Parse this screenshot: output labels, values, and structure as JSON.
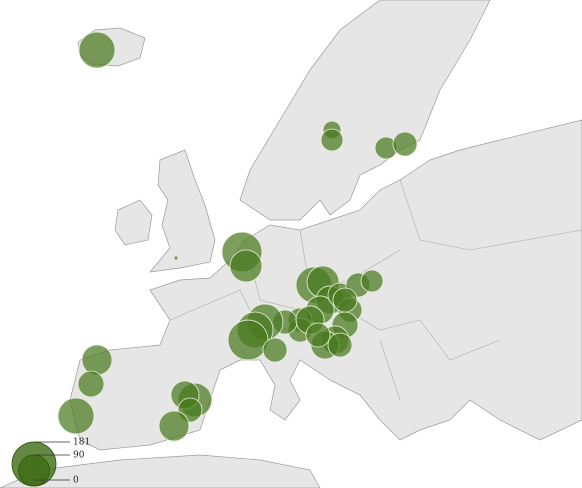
{
  "map_data": {
    "bubbles": [
      121,
      30,
      45,
      45,
      54,
      1,
      149,
      96,
      121,
      96,
      74,
      74,
      54,
      54,
      45,
      54,
      63,
      74,
      74,
      54,
      54,
      54,
      54,
      121,
      121,
      149,
      54,
      54,
      74,
      54,
      84,
      63,
      121,
      107,
      74,
      54,
      84
    ],
    "legend": {
      "ticks": [
        181,
        90,
        0
      ]
    }
  }
}
